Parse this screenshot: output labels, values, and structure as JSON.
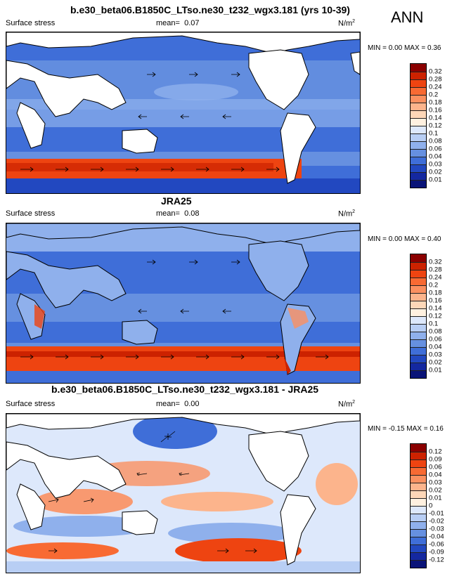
{
  "season_label": "ANN",
  "panels": [
    {
      "title": "b.e30_beta06.B1850C_LTso.ne30_t232_wgx3.181 (yrs 10-39)",
      "variable": "Surface stress",
      "mean_label": "mean=",
      "mean_value": "0.07",
      "units_base": "N/m",
      "units_exp": "2",
      "minmax": "MIN =  0.00 MAX =  0.36",
      "levels": [
        "0.32",
        "0.28",
        "0.24",
        "0.2",
        "0.18",
        "0.16",
        "0.14",
        "0.12",
        "0.1",
        "0.08",
        "0.06",
        "0.04",
        "0.03",
        "0.02",
        "0.01"
      ],
      "colors": [
        "#8b0000",
        "#cc2200",
        "#ee4411",
        "#f86a33",
        "#fb9060",
        "#fcb48c",
        "#fdd7b8",
        "#fff1e0",
        "#dde8fb",
        "#b8cef4",
        "#8fb0ec",
        "#6690e0",
        "#3f6ed8",
        "#2248c0",
        "#1428a0",
        "#0a1478"
      ]
    },
    {
      "title": "JRA25",
      "variable": "Surface stress",
      "mean_label": "mean=",
      "mean_value": "0.08",
      "units_base": "N/m",
      "units_exp": "2",
      "minmax": "MIN =  0.00 MAX =  0.40",
      "levels": [
        "0.32",
        "0.28",
        "0.24",
        "0.2",
        "0.18",
        "0.16",
        "0.14",
        "0.12",
        "0.1",
        "0.08",
        "0.06",
        "0.04",
        "0.03",
        "0.02",
        "0.01"
      ],
      "colors": [
        "#8b0000",
        "#cc2200",
        "#ee4411",
        "#f86a33",
        "#fb9060",
        "#fcb48c",
        "#fdd7b8",
        "#fff1e0",
        "#dde8fb",
        "#b8cef4",
        "#8fb0ec",
        "#6690e0",
        "#3f6ed8",
        "#2248c0",
        "#1428a0",
        "#0a1478"
      ]
    },
    {
      "title": "b.e30_beta06.B1850C_LTso.ne30_t232_wgx3.181 - JRA25",
      "variable": "Surface stress",
      "mean_label": "mean=",
      "mean_value": "0.00",
      "units_base": "N/m",
      "units_exp": "2",
      "minmax": "MIN = -0.15 MAX =  0.16",
      "levels": [
        "0.12",
        "0.09",
        "0.06",
        "0.04",
        "0.03",
        "0.02",
        "0.01",
        "0",
        "-0.01",
        "-0.02",
        "-0.03",
        "-0.04",
        "-0.06",
        "-0.09",
        "-0.12"
      ],
      "colors": [
        "#8b0000",
        "#cc2200",
        "#ee4411",
        "#f86a33",
        "#fb9060",
        "#fcb48c",
        "#fdd7b8",
        "#fff1e0",
        "#dde8fb",
        "#b8cef4",
        "#8fb0ec",
        "#6690e0",
        "#3f6ed8",
        "#2248c0",
        "#1428a0",
        "#0a1478"
      ]
    }
  ]
}
